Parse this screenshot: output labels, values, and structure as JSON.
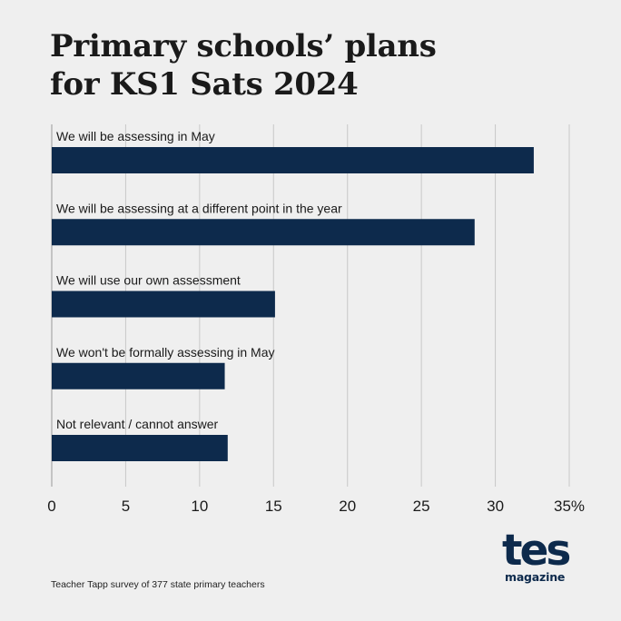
{
  "header": {
    "title_line1": "Primary schools’ plans",
    "title_line2": "for KS1 Sats 2024"
  },
  "chart_data": {
    "type": "bar",
    "orientation": "horizontal",
    "title": "Primary schools’ plans for KS1 Sats 2024",
    "categories": [
      "We will be assessing in May",
      "We will be assessing at a different point in the year",
      "We will use our own assessment",
      "We won't be formally assessing in May",
      "Not relevant / cannot answer"
    ],
    "values": [
      32.6,
      28.6,
      15.1,
      11.7,
      11.9
    ],
    "xlim": [
      0,
      35
    ],
    "x_ticks": [
      "0",
      "5",
      "10",
      "15",
      "20",
      "25",
      "30",
      "35%"
    ],
    "bar_color": "#0d2a4c",
    "grid": true
  },
  "footer": {
    "source": "Teacher Tapp survey of 377 state primary teachers",
    "logo_main": "tes",
    "logo_sub": "magazine"
  },
  "colors": {
    "background": "#efefef",
    "bar": "#0d2a4c",
    "grid": "#c8c8c8"
  }
}
